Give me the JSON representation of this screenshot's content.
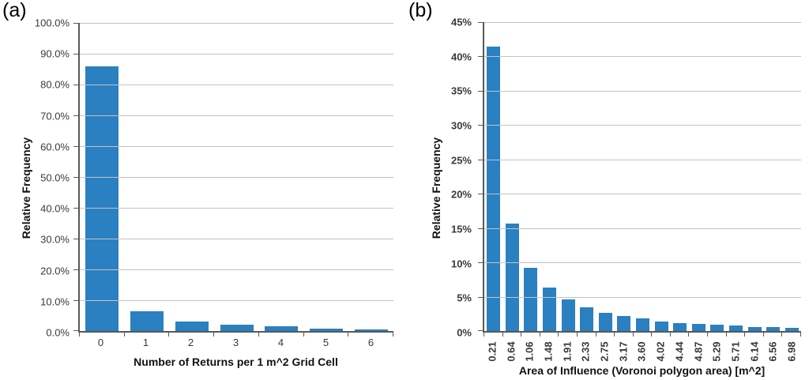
{
  "figure": {
    "background": "#ffffff"
  },
  "colors": {
    "bar": "#2a80c0",
    "gridline": "#c3c3c3",
    "axis": "#595959",
    "tick_text": "#3a3a3a",
    "title_text": "#111111"
  },
  "chart_data": [
    {
      "type": "bar",
      "panel_label": "(a)",
      "title": "",
      "xlabel": "Number of Returns per 1 m^2 Grid Cell",
      "ylabel": "Relative Frequency",
      "categories": [
        "0",
        "1",
        "2",
        "3",
        "4",
        "5",
        "6"
      ],
      "values": [
        86.0,
        6.3,
        3.2,
        2.1,
        1.5,
        0.9,
        0.5
      ],
      "ylim": [
        0,
        100
      ],
      "ytick_values": [
        0,
        10,
        20,
        30,
        40,
        50,
        60,
        70,
        80,
        90,
        100
      ],
      "ytick_labels": [
        "0.0%",
        "10.0%",
        "20.0%",
        "30.0%",
        "40.0%",
        "50.0%",
        "60.0%",
        "70.0%",
        "80.0%",
        "90.0%",
        "100.0%"
      ],
      "grid": true,
      "legend": false,
      "bold_ticks": false,
      "rotate_x_labels": false,
      "bar_width_pct": 74
    },
    {
      "type": "bar",
      "panel_label": "(b)",
      "title": "",
      "xlabel": "Area of Influence (Voronoi polygon area) [m^2]",
      "ylabel": "Relative Frequency",
      "categories": [
        "0.21",
        "0.64",
        "1.06",
        "1.48",
        "1.91",
        "2.33",
        "2.75",
        "3.17",
        "3.60",
        "4.02",
        "4.44",
        "4.87",
        "5.29",
        "5.71",
        "6.14",
        "6.56",
        "6.98"
      ],
      "values": [
        41.4,
        15.7,
        9.2,
        6.3,
        4.6,
        3.4,
        2.7,
        2.2,
        1.8,
        1.4,
        1.2,
        1.0,
        0.9,
        0.8,
        0.6,
        0.55,
        0.5
      ],
      "ylim": [
        0,
        45
      ],
      "ytick_values": [
        0,
        5,
        10,
        15,
        20,
        25,
        30,
        35,
        40,
        45
      ],
      "ytick_labels": [
        "0%",
        "5%",
        "10%",
        "15%",
        "20%",
        "25%",
        "30%",
        "35%",
        "40%",
        "45%"
      ],
      "grid": true,
      "legend": false,
      "bold_ticks": true,
      "rotate_x_labels": true,
      "bar_width_pct": 72
    }
  ]
}
